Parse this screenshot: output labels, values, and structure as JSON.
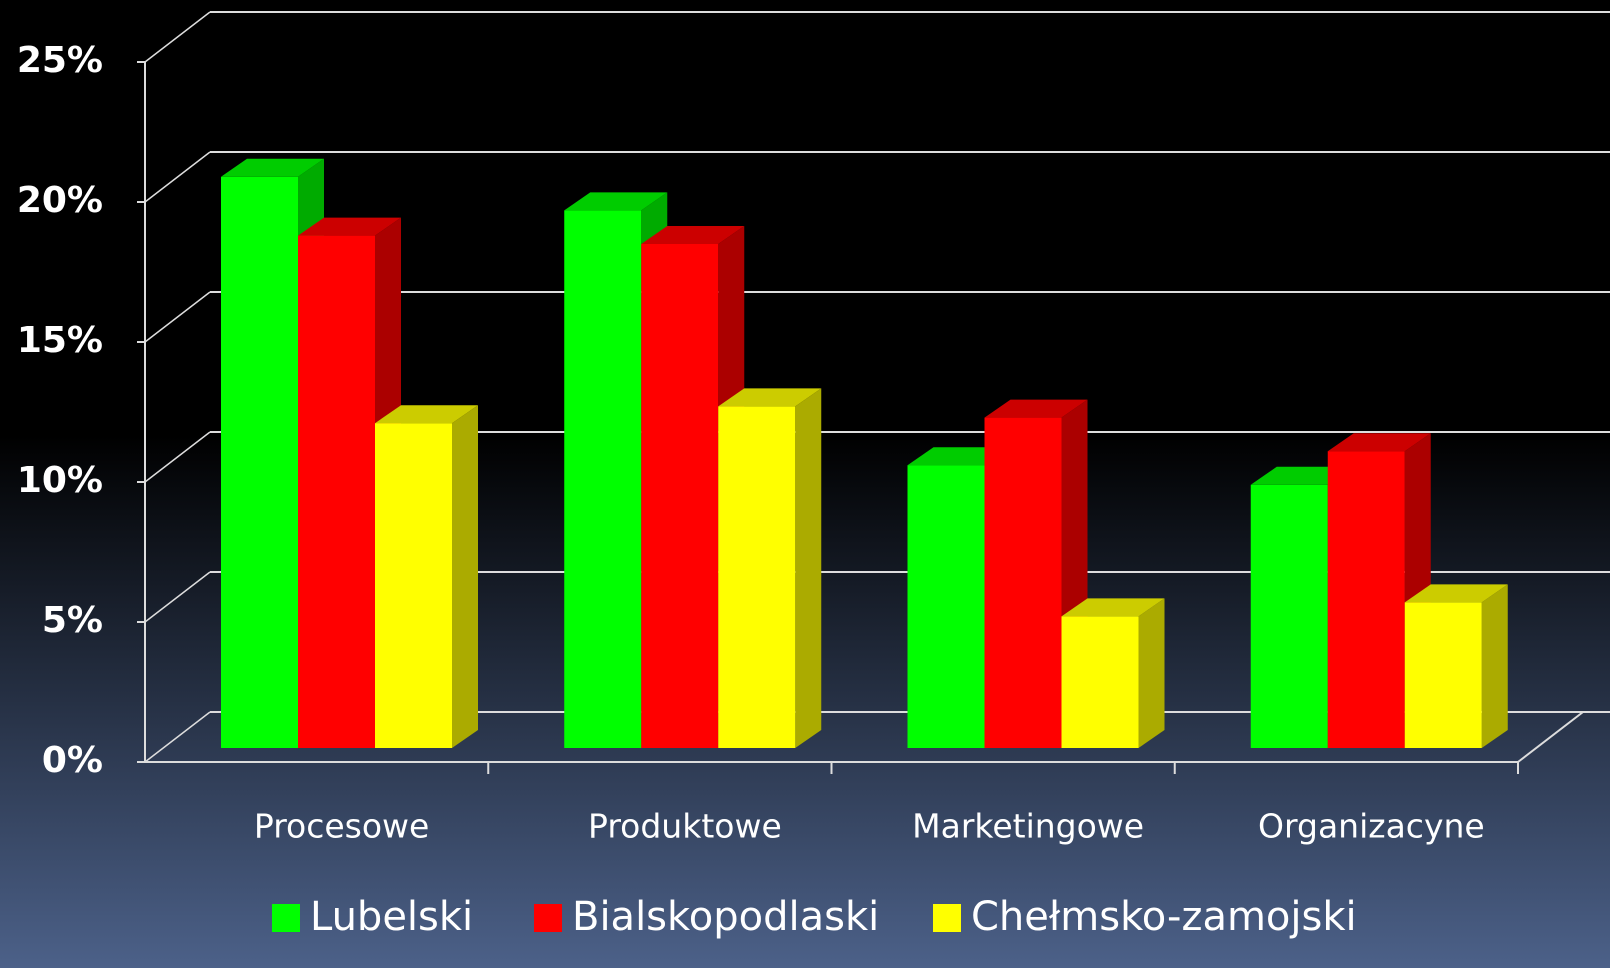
{
  "chart_data": {
    "type": "bar3d",
    "categories": [
      "Procesowe",
      "Produktowe",
      "Marketingowe",
      "Organizacyne"
    ],
    "series": [
      {
        "name": "Lubelski",
        "color": "#00ff00",
        "values": [
          20.4,
          19.2,
          10.1,
          9.4
        ]
      },
      {
        "name": "Bialskopodlaski",
        "color": "#ff0000",
        "values": [
          18.3,
          18.0,
          11.8,
          10.6
        ]
      },
      {
        "name": "Chełmsko-zamojski",
        "color": "#ffff00",
        "values": [
          11.6,
          12.2,
          4.7,
          5.2
        ]
      }
    ],
    "ylim": [
      0,
      25
    ],
    "yticks": [
      {
        "value": 0,
        "label": "0%"
      },
      {
        "value": 5,
        "label": "5%"
      },
      {
        "value": 10,
        "label": "10%"
      },
      {
        "value": 15,
        "label": "15%"
      },
      {
        "value": 20,
        "label": "20%"
      },
      {
        "value": 25,
        "label": "25%"
      }
    ],
    "grid": true,
    "legend": "bottom"
  }
}
